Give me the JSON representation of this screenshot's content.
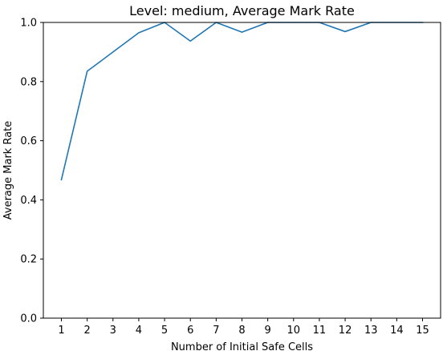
{
  "chart_data": {
    "type": "line",
    "title": "Level: medium, Average Mark Rate",
    "xlabel": "Number of Initial Safe Cells",
    "ylabel": "Average Mark Rate",
    "xlim": [
      0.3,
      15.7
    ],
    "ylim": [
      0.0,
      1.0
    ],
    "grid": false,
    "x_ticks": [
      1,
      2,
      3,
      4,
      5,
      6,
      7,
      8,
      9,
      10,
      11,
      12,
      13,
      14,
      15
    ],
    "x_tick_labels": [
      "1",
      "2",
      "3",
      "4",
      "5",
      "6",
      "7",
      "8",
      "9",
      "10",
      "11",
      "12",
      "13",
      "14",
      "15"
    ],
    "y_ticks": [
      0.0,
      0.2,
      0.4,
      0.6,
      0.8,
      1.0
    ],
    "y_tick_labels": [
      "0.0",
      "0.2",
      "0.4",
      "0.6",
      "0.8",
      "1.0"
    ],
    "series": [
      {
        "color": "#1f77b4",
        "x": [
          1,
          2,
          3,
          4,
          5,
          6,
          7,
          8,
          9,
          10,
          11,
          12,
          13,
          14,
          15
        ],
        "y": [
          0.468,
          0.835,
          0.9,
          0.965,
          1.0,
          0.937,
          1.0,
          0.967,
          1.0,
          1.0,
          1.0,
          0.969,
          1.0,
          1.0,
          1.0
        ]
      }
    ]
  }
}
